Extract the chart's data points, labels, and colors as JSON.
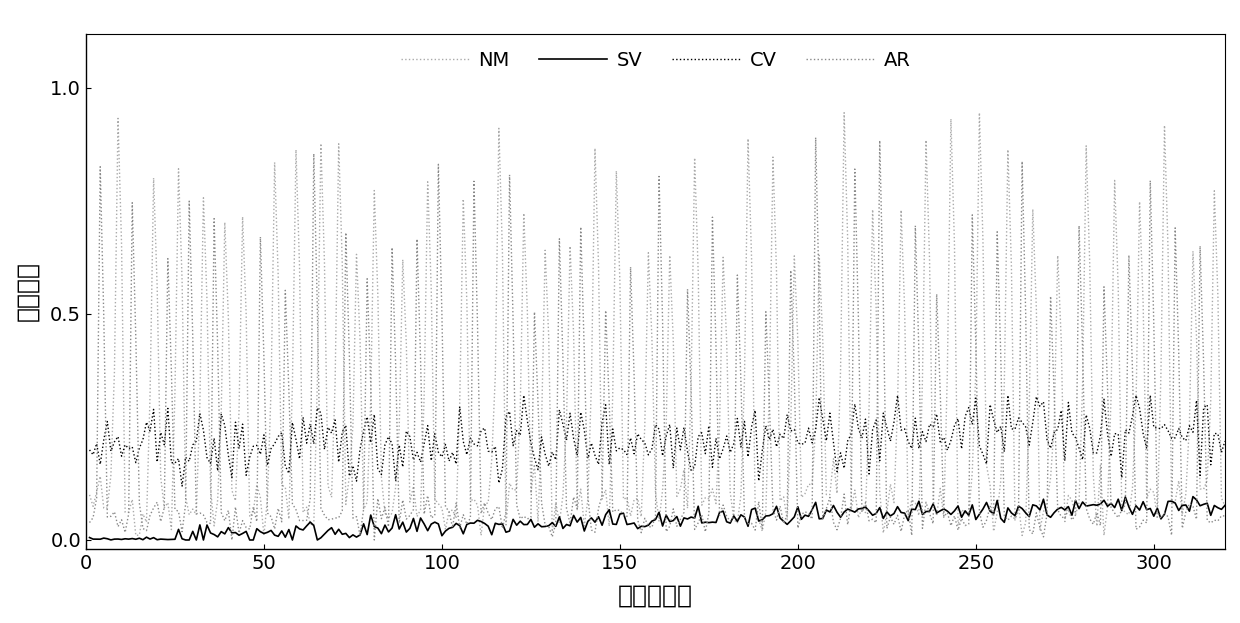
{
  "title": "",
  "xlabel": "分类器序号",
  "ylabel": "泛化误差",
  "xlim": [
    0,
    320
  ],
  "ylim": [
    -0.02,
    1.12
  ],
  "yticks": [
    0,
    0.5,
    1
  ],
  "xticks": [
    0,
    50,
    100,
    150,
    200,
    250,
    300
  ],
  "n_points": 320,
  "legend_labels": [
    "NM",
    "SV",
    "CV",
    "AR"
  ],
  "background_color": "#ffffff",
  "seed": 42
}
